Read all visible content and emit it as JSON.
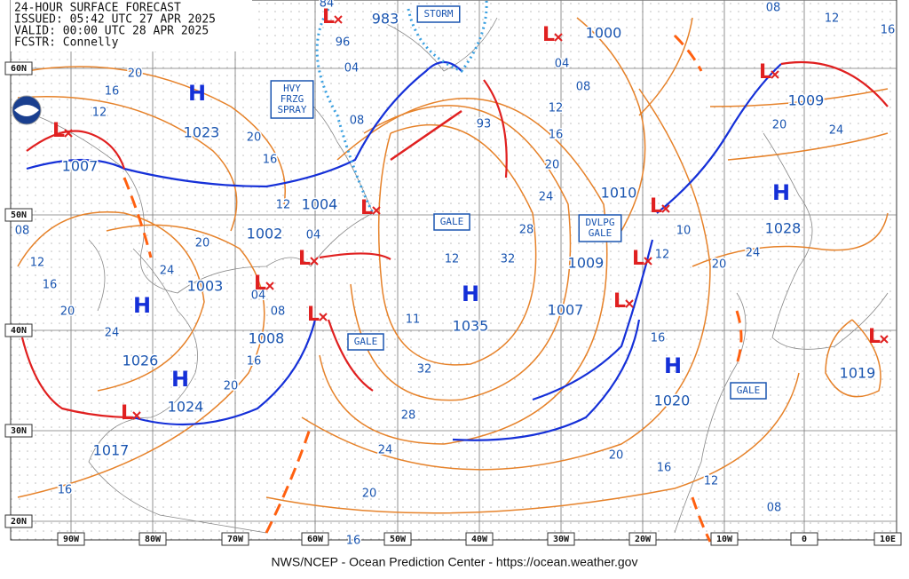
{
  "header": {
    "lines": [
      "24-HOUR SURFACE FORECAST",
      "ISSUED: 05:42 UTC 27 APR 2025",
      "VALID:  00:00 UTC 28 APR 2025",
      "FCSTR:  Connelly"
    ]
  },
  "lon_labels": [
    "90W",
    "80W",
    "70W",
    "60W",
    "50W",
    "40W",
    "30W",
    "20W",
    "10W",
    "0",
    "10E"
  ],
  "lat_labels": [
    "60N",
    "50N",
    "40N",
    "30N",
    "20N"
  ],
  "highs": [
    {
      "symbol": "H",
      "pressure": "1023"
    },
    {
      "symbol": "H",
      "pressure": "1026"
    },
    {
      "symbol": "H",
      "pressure": "1024"
    },
    {
      "symbol": "H",
      "pressure": "1035"
    },
    {
      "symbol": "H",
      "pressure": "1028"
    },
    {
      "symbol": "H",
      "pressure": "1020"
    }
  ],
  "lows": [
    {
      "symbol": "L",
      "pressure": "1007"
    },
    {
      "symbol": "L",
      "pressure": "1004"
    },
    {
      "symbol": "L",
      "pressure": "1002"
    },
    {
      "symbol": "L",
      "pressure": "1008"
    },
    {
      "symbol": "L",
      "pressure": "1017"
    },
    {
      "symbol": "L",
      "pressure": "1000"
    },
    {
      "symbol": "L",
      "pressure": "983"
    },
    {
      "symbol": "L",
      "pressure": "1009"
    },
    {
      "symbol": "L",
      "pressure": "1010"
    },
    {
      "symbol": "L",
      "pressure": "1009"
    },
    {
      "symbol": "L",
      "pressure": "1007"
    },
    {
      "symbol": "L",
      "pressure": "1019"
    },
    {
      "symbol": "L",
      "pressure": "1003"
    }
  ],
  "isobar_labels": [
    "12",
    "11",
    "93",
    "10",
    "12",
    "16",
    "20",
    "16",
    "12",
    "08",
    "20",
    "24",
    "24",
    "20",
    "16",
    "12",
    "08",
    "04",
    "08",
    "12",
    "16",
    "20",
    "24",
    "28",
    "32",
    "32",
    "28",
    "24",
    "20",
    "16",
    "16",
    "20",
    "16",
    "08",
    "04",
    "24",
    "20",
    "16",
    "12",
    "08",
    "20",
    "24",
    "12",
    "04",
    "16",
    "20",
    "16",
    "12",
    "20",
    "04",
    "08",
    "84",
    "96"
  ],
  "warnings": [
    {
      "lines": [
        "STORM"
      ]
    },
    {
      "lines": [
        "HVY",
        "FRZG",
        "SPRAY"
      ]
    },
    {
      "lines": [
        "GALE"
      ]
    },
    {
      "lines": [
        "DVLPG",
        "GALE"
      ]
    },
    {
      "lines": [
        "GALE"
      ]
    },
    {
      "lines": [
        "GALE"
      ]
    }
  ],
  "footer": "NWS/NCEP - Ocean Prediction Center - https://ocean.weather.gov"
}
